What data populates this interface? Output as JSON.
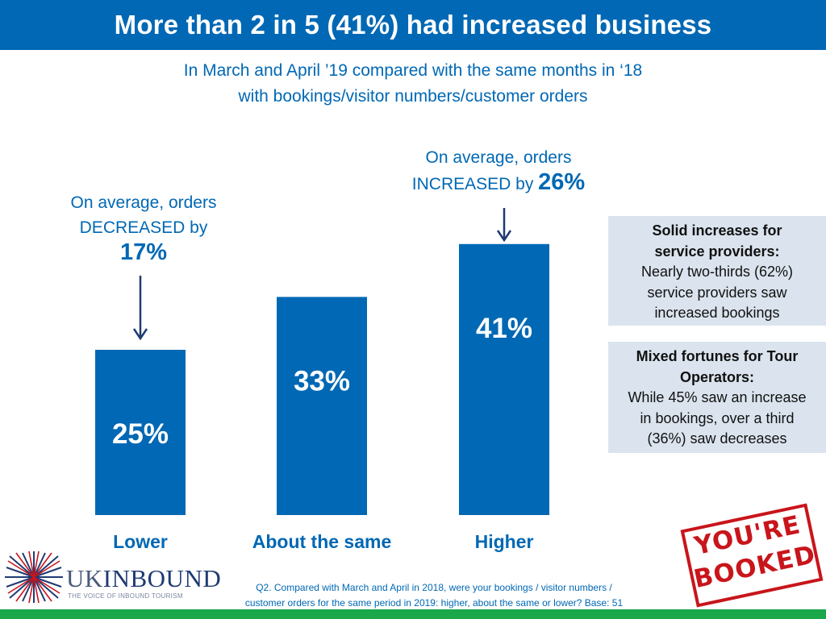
{
  "header": {
    "title": "More than 2 in 5 (41%) had increased business",
    "subtitle_lines": [
      "In March and April ’19 compared with the same months in ‘18",
      "with bookings/visitor numbers/customer orders"
    ]
  },
  "annotations": {
    "left": {
      "lines": [
        "On average, orders",
        "DECREASED by"
      ],
      "value": "17%"
    },
    "right": {
      "line1": "On average, orders",
      "line2": "INCREASED by",
      "value": "26%"
    }
  },
  "info_boxes": [
    {
      "heading_lines": [
        "Solid increases for",
        "service providers:"
      ],
      "body_lines": [
        "Nearly two-thirds (62%)",
        "service providers saw",
        "increased bookings"
      ]
    },
    {
      "heading_lines": [
        "Mixed fortunes for Tour",
        "Operators:"
      ],
      "body_lines": [
        "While 45% saw an increase",
        "in bookings, over a third",
        "(36%) saw decreases"
      ]
    }
  ],
  "chart_data": {
    "type": "bar",
    "categories": [
      "Lower",
      "About the same",
      "Higher"
    ],
    "values": [
      25,
      33,
      41
    ],
    "value_labels": [
      "25%",
      "33%",
      "41%"
    ],
    "ylim": [
      0,
      50
    ],
    "grid": false,
    "bar_color": "#0068b4",
    "category_color": "#0068b4"
  },
  "logo": {
    "brand_prefix": "UK",
    "brand_suffix": "INBOUND",
    "tagline": "THE VOICE OF INBOUND TOURISM"
  },
  "footnote": {
    "lines": [
      "Q2. Compared with March and April in 2018, were your bookings / visitor numbers /",
      "customer orders for the same period in 2019: higher, about the same or lower?  Base: 51"
    ]
  },
  "stamp": {
    "lines": [
      "YOU'RE",
      "BOOKED"
    ]
  },
  "colors": {
    "brand_blue": "#0068b4",
    "accent_green": "#1aa84a",
    "stamp_red": "#c8151b",
    "box_bg": "#dbe4ee"
  }
}
